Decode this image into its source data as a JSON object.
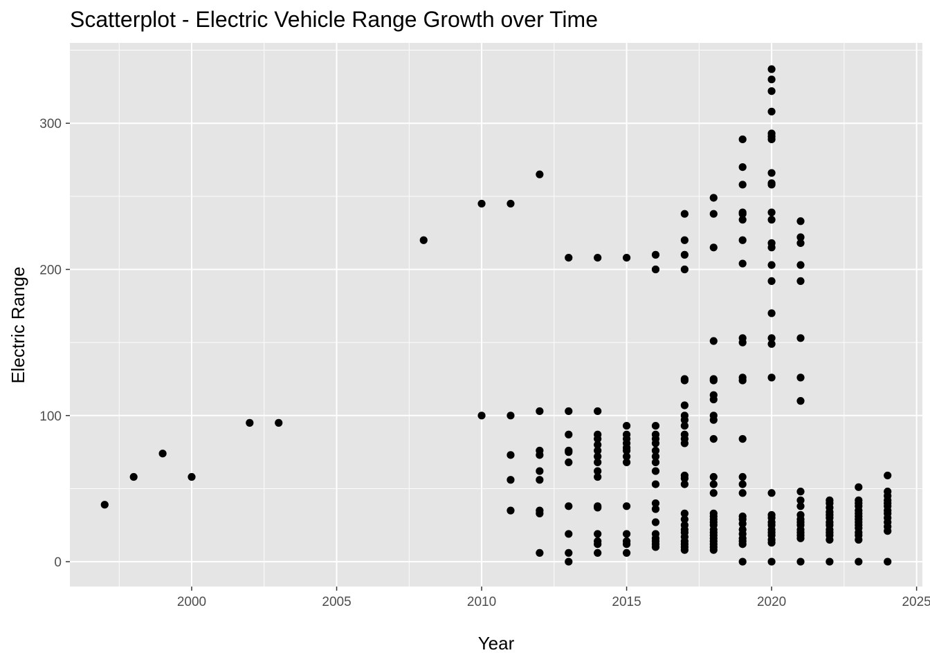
{
  "chart_data": {
    "type": "scatter",
    "title": "Scatterplot - Electric Vehicle Range Growth over Time",
    "xlabel": "Year",
    "ylabel": "Electric Range",
    "xlim": [
      1995.8,
      2025.2
    ],
    "ylim": [
      -17,
      355
    ],
    "x_ticks": [
      2000,
      2005,
      2010,
      2015,
      2020,
      2025
    ],
    "y_ticks": [
      0,
      100,
      200,
      300
    ],
    "grid": true,
    "legend": "none",
    "colors": {
      "panel": "#e5e5e5",
      "grid_major": "#ffffff",
      "point": "#000000",
      "tick_text": "#4d4d4d"
    },
    "points": [
      [
        1997,
        39
      ],
      [
        1998,
        58
      ],
      [
        1999,
        74
      ],
      [
        2000,
        58
      ],
      [
        2002,
        95
      ],
      [
        2003,
        95
      ],
      [
        2008,
        220
      ],
      [
        2010,
        245
      ],
      [
        2010,
        100
      ],
      [
        2011,
        245
      ],
      [
        2011,
        100
      ],
      [
        2011,
        73
      ],
      [
        2011,
        56
      ],
      [
        2011,
        35
      ],
      [
        2012,
        265
      ],
      [
        2012,
        103
      ],
      [
        2012,
        76
      ],
      [
        2012,
        73
      ],
      [
        2012,
        62
      ],
      [
        2012,
        56
      ],
      [
        2012,
        35
      ],
      [
        2012,
        33
      ],
      [
        2012,
        6
      ],
      [
        2013,
        208
      ],
      [
        2013,
        103
      ],
      [
        2013,
        87
      ],
      [
        2013,
        76
      ],
      [
        2013,
        75
      ],
      [
        2013,
        68
      ],
      [
        2013,
        38
      ],
      [
        2013,
        19
      ],
      [
        2013,
        6
      ],
      [
        2013,
        0
      ],
      [
        2014,
        208
      ],
      [
        2014,
        103
      ],
      [
        2014,
        87
      ],
      [
        2014,
        84
      ],
      [
        2014,
        80
      ],
      [
        2014,
        76
      ],
      [
        2014,
        72
      ],
      [
        2014,
        68
      ],
      [
        2014,
        62
      ],
      [
        2014,
        58
      ],
      [
        2014,
        38
      ],
      [
        2014,
        37
      ],
      [
        2014,
        19
      ],
      [
        2014,
        14
      ],
      [
        2014,
        12
      ],
      [
        2014,
        6
      ],
      [
        2015,
        208
      ],
      [
        2015,
        93
      ],
      [
        2015,
        87
      ],
      [
        2015,
        84
      ],
      [
        2015,
        81
      ],
      [
        2015,
        78
      ],
      [
        2015,
        76
      ],
      [
        2015,
        72
      ],
      [
        2015,
        68
      ],
      [
        2015,
        38
      ],
      [
        2015,
        19
      ],
      [
        2015,
        14
      ],
      [
        2015,
        12
      ],
      [
        2015,
        6
      ],
      [
        2016,
        210
      ],
      [
        2016,
        200
      ],
      [
        2016,
        93
      ],
      [
        2016,
        87
      ],
      [
        2016,
        84
      ],
      [
        2016,
        81
      ],
      [
        2016,
        76
      ],
      [
        2016,
        72
      ],
      [
        2016,
        68
      ],
      [
        2016,
        62
      ],
      [
        2016,
        53
      ],
      [
        2016,
        40
      ],
      [
        2016,
        36
      ],
      [
        2016,
        27
      ],
      [
        2016,
        19
      ],
      [
        2016,
        16
      ],
      [
        2016,
        14
      ],
      [
        2016,
        12
      ],
      [
        2016,
        10
      ],
      [
        2017,
        238
      ],
      [
        2017,
        220
      ],
      [
        2017,
        210
      ],
      [
        2017,
        200
      ],
      [
        2017,
        125
      ],
      [
        2017,
        124
      ],
      [
        2017,
        107
      ],
      [
        2017,
        100
      ],
      [
        2017,
        97
      ],
      [
        2017,
        93
      ],
      [
        2017,
        87
      ],
      [
        2017,
        84
      ],
      [
        2017,
        81
      ],
      [
        2017,
        59
      ],
      [
        2017,
        57
      ],
      [
        2017,
        53
      ],
      [
        2017,
        33
      ],
      [
        2017,
        29
      ],
      [
        2017,
        25
      ],
      [
        2017,
        22
      ],
      [
        2017,
        20
      ],
      [
        2017,
        17
      ],
      [
        2017,
        14
      ],
      [
        2017,
        12
      ],
      [
        2017,
        10
      ],
      [
        2017,
        8
      ],
      [
        2018,
        249
      ],
      [
        2018,
        238
      ],
      [
        2018,
        215
      ],
      [
        2018,
        151
      ],
      [
        2018,
        125
      ],
      [
        2018,
        124
      ],
      [
        2018,
        114
      ],
      [
        2018,
        111
      ],
      [
        2018,
        100
      ],
      [
        2018,
        97
      ],
      [
        2018,
        84
      ],
      [
        2018,
        58
      ],
      [
        2018,
        53
      ],
      [
        2018,
        47
      ],
      [
        2018,
        33
      ],
      [
        2018,
        31
      ],
      [
        2018,
        29
      ],
      [
        2018,
        27
      ],
      [
        2018,
        25
      ],
      [
        2018,
        22
      ],
      [
        2018,
        20
      ],
      [
        2018,
        18
      ],
      [
        2018,
        16
      ],
      [
        2018,
        14
      ],
      [
        2018,
        12
      ],
      [
        2018,
        10
      ],
      [
        2018,
        8
      ],
      [
        2019,
        289
      ],
      [
        2019,
        270
      ],
      [
        2019,
        258
      ],
      [
        2019,
        239
      ],
      [
        2019,
        238
      ],
      [
        2019,
        234
      ],
      [
        2019,
        220
      ],
      [
        2019,
        204
      ],
      [
        2019,
        153
      ],
      [
        2019,
        150
      ],
      [
        2019,
        126
      ],
      [
        2019,
        124
      ],
      [
        2019,
        84
      ],
      [
        2019,
        58
      ],
      [
        2019,
        53
      ],
      [
        2019,
        47
      ],
      [
        2019,
        31
      ],
      [
        2019,
        29
      ],
      [
        2019,
        26
      ],
      [
        2019,
        22
      ],
      [
        2019,
        19
      ],
      [
        2019,
        16
      ],
      [
        2019,
        14
      ],
      [
        2019,
        12
      ],
      [
        2019,
        0
      ],
      [
        2020,
        337
      ],
      [
        2020,
        330
      ],
      [
        2020,
        322
      ],
      [
        2020,
        308
      ],
      [
        2020,
        293
      ],
      [
        2020,
        291
      ],
      [
        2020,
        289
      ],
      [
        2020,
        266
      ],
      [
        2020,
        259
      ],
      [
        2020,
        258
      ],
      [
        2020,
        239
      ],
      [
        2020,
        234
      ],
      [
        2020,
        218
      ],
      [
        2020,
        215
      ],
      [
        2020,
        203
      ],
      [
        2020,
        192
      ],
      [
        2020,
        170
      ],
      [
        2020,
        153
      ],
      [
        2020,
        149
      ],
      [
        2020,
        126
      ],
      [
        2020,
        47
      ],
      [
        2020,
        32
      ],
      [
        2020,
        30
      ],
      [
        2020,
        27
      ],
      [
        2020,
        25
      ],
      [
        2020,
        22
      ],
      [
        2020,
        20
      ],
      [
        2020,
        18
      ],
      [
        2020,
        15
      ],
      [
        2020,
        13
      ],
      [
        2020,
        0
      ],
      [
        2021,
        233
      ],
      [
        2021,
        222
      ],
      [
        2021,
        218
      ],
      [
        2021,
        203
      ],
      [
        2021,
        192
      ],
      [
        2021,
        153
      ],
      [
        2021,
        126
      ],
      [
        2021,
        110
      ],
      [
        2021,
        48
      ],
      [
        2021,
        42
      ],
      [
        2021,
        38
      ],
      [
        2021,
        32
      ],
      [
        2021,
        29
      ],
      [
        2021,
        27
      ],
      [
        2021,
        25
      ],
      [
        2021,
        22
      ],
      [
        2021,
        20
      ],
      [
        2021,
        18
      ],
      [
        2021,
        16
      ],
      [
        2021,
        0
      ],
      [
        2022,
        42
      ],
      [
        2022,
        40
      ],
      [
        2022,
        37
      ],
      [
        2022,
        34
      ],
      [
        2022,
        32
      ],
      [
        2022,
        30
      ],
      [
        2022,
        27
      ],
      [
        2022,
        25
      ],
      [
        2022,
        22
      ],
      [
        2022,
        20
      ],
      [
        2022,
        18
      ],
      [
        2022,
        15
      ],
      [
        2022,
        0
      ],
      [
        2023,
        51
      ],
      [
        2023,
        42
      ],
      [
        2023,
        40
      ],
      [
        2023,
        38
      ],
      [
        2023,
        35
      ],
      [
        2023,
        33
      ],
      [
        2023,
        31
      ],
      [
        2023,
        29
      ],
      [
        2023,
        27
      ],
      [
        2023,
        25
      ],
      [
        2023,
        23
      ],
      [
        2023,
        20
      ],
      [
        2023,
        18
      ],
      [
        2023,
        15
      ],
      [
        2023,
        0
      ],
      [
        2024,
        59
      ],
      [
        2024,
        48
      ],
      [
        2024,
        45
      ],
      [
        2024,
        42
      ],
      [
        2024,
        40
      ],
      [
        2024,
        38
      ],
      [
        2024,
        35
      ],
      [
        2024,
        33
      ],
      [
        2024,
        30
      ],
      [
        2024,
        27
      ],
      [
        2024,
        24
      ],
      [
        2024,
        21
      ],
      [
        2024,
        0
      ]
    ]
  }
}
